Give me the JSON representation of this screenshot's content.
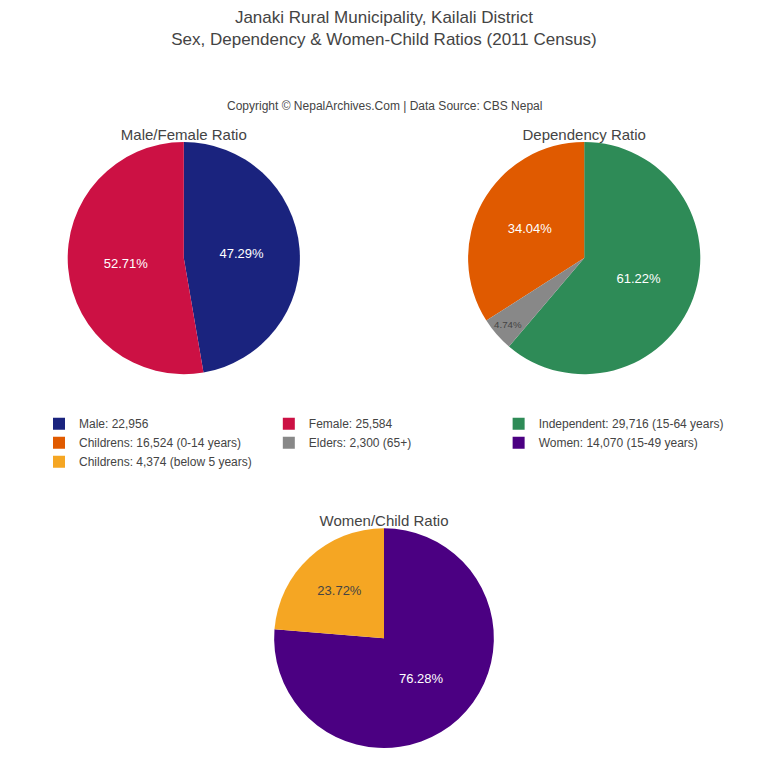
{
  "title": "Janaki Rural Municipality, Kailali District",
  "subtitle": "Sex, Dependency & Women-Child Ratios (2011 Census)",
  "annotations": [
    "Copyright © NepalArchives.Com | Data Source: CBS Nepal"
  ],
  "legend": "center",
  "chart_data": [
    {
      "type": "pie",
      "title": "Male/Female Ratio",
      "categories": [
        "Male: 22,956",
        "Female: 25,584"
      ],
      "values": [
        47.29,
        52.71
      ],
      "value_labels": [
        "47.29%",
        "52.71%"
      ],
      "colors": [
        "#1a237e",
        "#cc1144"
      ],
      "data_labels": true
    },
    {
      "type": "pie",
      "title": "Dependency Ratio",
      "categories": [
        "Independent: 29,716 (15-64 years)",
        "Childrens: 16,524 (0-14 years)",
        "Elders: 2,300 (65+)"
      ],
      "values": [
        61.22,
        34.04,
        4.74
      ],
      "value_labels": [
        "61.22%",
        "34.04%",
        "4.74%"
      ],
      "colors": [
        "#2e8b57",
        "#e05a00",
        "#888888"
      ],
      "data_labels": true
    },
    {
      "type": "pie",
      "title": "Women/Child Ratio",
      "categories": [
        "Women: 14,070 (15-49 years)",
        "Childrens: 4,374 (below 5 years)"
      ],
      "values": [
        76.28,
        23.72
      ],
      "value_labels": [
        "76.28%",
        "23.72%"
      ],
      "colors": [
        "#4b0082",
        "#f5a623"
      ],
      "data_labels": true
    }
  ]
}
